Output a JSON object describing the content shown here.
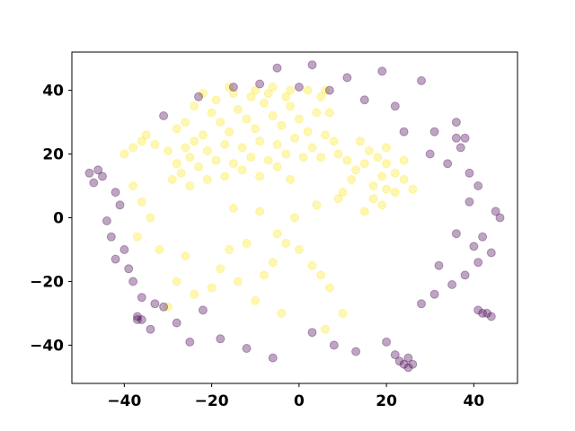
{
  "chart_data": {
    "type": "scatter",
    "title": "",
    "xlabel": "",
    "ylabel": "",
    "xlim": [
      -52,
      50
    ],
    "ylim": [
      -52,
      52
    ],
    "x_ticks": [
      -40,
      -20,
      0,
      20,
      40
    ],
    "y_ticks": [
      -40,
      -20,
      0,
      20,
      40
    ],
    "x_tick_labels": [
      "−40",
      "−20",
      "0",
      "20",
      "40"
    ],
    "y_tick_labels": [
      "−40",
      "−20",
      "0",
      "20",
      "40"
    ],
    "grid": false,
    "legend": "none",
    "marker_alpha": 0.35,
    "colors": {
      "class_a": "#440154",
      "class_b": "#fde725"
    },
    "series": [
      {
        "class": "class_b",
        "points": [
          [
            -20,
            33
          ],
          [
            -18,
            30
          ],
          [
            -16,
            27
          ],
          [
            -14,
            34
          ],
          [
            -12,
            31
          ],
          [
            -10,
            28
          ],
          [
            -8,
            36
          ],
          [
            -6,
            32
          ],
          [
            -4,
            29
          ],
          [
            -2,
            35
          ],
          [
            0,
            31
          ],
          [
            2,
            27
          ],
          [
            4,
            33
          ],
          [
            -22,
            26
          ],
          [
            -24,
            24
          ],
          [
            -26,
            22
          ],
          [
            -21,
            21
          ],
          [
            -17,
            23
          ],
          [
            -13,
            22
          ],
          [
            -9,
            24
          ],
          [
            -5,
            23
          ],
          [
            -1,
            25
          ],
          [
            3,
            22
          ],
          [
            6,
            26
          ],
          [
            8,
            24
          ],
          [
            -19,
            37
          ],
          [
            -15,
            39
          ],
          [
            -11,
            38
          ],
          [
            -7,
            39
          ],
          [
            -3,
            38
          ],
          [
            5,
            38
          ],
          [
            7,
            33
          ],
          [
            -28,
            17
          ],
          [
            -25,
            19
          ],
          [
            -30,
            21
          ],
          [
            -33,
            23
          ],
          [
            -35,
            26
          ],
          [
            -27,
            14
          ],
          [
            -23,
            16
          ],
          [
            -19,
            18
          ],
          [
            -15,
            17
          ],
          [
            -11,
            19
          ],
          [
            -7,
            18
          ],
          [
            -3,
            20
          ],
          [
            1,
            19
          ],
          [
            5,
            19
          ],
          [
            9,
            20
          ],
          [
            -29,
            12
          ],
          [
            -25,
            10
          ],
          [
            -21,
            12
          ],
          [
            -17,
            13
          ],
          [
            -13,
            15
          ],
          [
            -9,
            13
          ],
          [
            -5,
            16
          ],
          [
            -2,
            12
          ],
          [
            -38,
            22
          ],
          [
            -36,
            24
          ],
          [
            -40,
            20
          ],
          [
            -26,
            30
          ],
          [
            -28,
            28
          ],
          [
            -24,
            35
          ],
          [
            -22,
            39
          ],
          [
            -16,
            41
          ],
          [
            -10,
            40
          ],
          [
            -6,
            41
          ],
          [
            -2,
            40
          ],
          [
            2,
            40
          ],
          [
            6,
            40
          ],
          [
            14,
            24
          ],
          [
            16,
            21
          ],
          [
            18,
            19
          ],
          [
            20,
            17
          ],
          [
            22,
            14
          ],
          [
            15,
            17
          ],
          [
            19,
            13
          ],
          [
            17,
            10
          ],
          [
            20,
            9
          ],
          [
            22,
            8
          ],
          [
            13,
            15
          ],
          [
            11,
            18
          ],
          [
            24,
            12
          ],
          [
            26,
            9
          ],
          [
            17,
            6
          ],
          [
            19,
            4
          ],
          [
            -20,
            -22
          ],
          [
            -18,
            -16
          ],
          [
            -14,
            -20
          ],
          [
            -24,
            -24
          ],
          [
            -10,
            -26
          ],
          [
            -8,
            -18
          ],
          [
            -5,
            -5
          ],
          [
            -3,
            -8
          ],
          [
            5,
            -18
          ],
          [
            7,
            -22
          ],
          [
            -28,
            -20
          ],
          [
            -26,
            -12
          ],
          [
            -16,
            -10
          ],
          [
            -30,
            -28
          ],
          [
            0,
            -10
          ],
          [
            3,
            -15
          ],
          [
            -12,
            -8
          ],
          [
            -6,
            -14
          ],
          [
            10,
            -30
          ],
          [
            6,
            -35
          ],
          [
            -4,
            -30
          ],
          [
            -34,
            0
          ],
          [
            -37,
            -6
          ],
          [
            -32,
            -10
          ],
          [
            -15,
            3
          ],
          [
            -9,
            2
          ],
          [
            -1,
            0
          ],
          [
            4,
            4
          ],
          [
            9,
            6
          ],
          [
            12,
            12
          ],
          [
            15,
            2
          ],
          [
            10,
            8
          ],
          [
            -36,
            5
          ],
          [
            -38,
            10
          ],
          [
            20,
            22
          ],
          [
            24,
            18
          ]
        ]
      },
      {
        "class": "class_a",
        "points": [
          [
            -5,
            47
          ],
          [
            3,
            48
          ],
          [
            19,
            46
          ],
          [
            28,
            43
          ],
          [
            11,
            44
          ],
          [
            -15,
            41
          ],
          [
            -9,
            42
          ],
          [
            0,
            41
          ],
          [
            7,
            40
          ],
          [
            15,
            37
          ],
          [
            22,
            35
          ],
          [
            -23,
            38
          ],
          [
            -31,
            32
          ],
          [
            36,
            30
          ],
          [
            38,
            25
          ],
          [
            36,
            25
          ],
          [
            24,
            27
          ],
          [
            31,
            27
          ],
          [
            37,
            22
          ],
          [
            -48,
            14
          ],
          [
            -47,
            11
          ],
          [
            -45,
            13
          ],
          [
            -46,
            15
          ],
          [
            -42,
            8
          ],
          [
            -41,
            4
          ],
          [
            -44,
            -1
          ],
          [
            -43,
            -6
          ],
          [
            -40,
            -10
          ],
          [
            -42,
            -13
          ],
          [
            -39,
            -16
          ],
          [
            -38,
            -20
          ],
          [
            -36,
            -25
          ],
          [
            -33,
            -27
          ],
          [
            -37,
            -31
          ],
          [
            -36,
            -32
          ],
          [
            -37,
            -32
          ],
          [
            -34,
            -35
          ],
          [
            42,
            -30
          ],
          [
            43,
            -30
          ],
          [
            41,
            -29
          ],
          [
            44,
            -31
          ],
          [
            23,
            -45
          ],
          [
            24,
            -46
          ],
          [
            25,
            -47
          ],
          [
            26,
            -46
          ],
          [
            22,
            -43
          ],
          [
            25,
            -44
          ],
          [
            20,
            -39
          ],
          [
            13,
            -42
          ],
          [
            8,
            -40
          ],
          [
            3,
            -36
          ],
          [
            -6,
            -44
          ],
          [
            -12,
            -41
          ],
          [
            -18,
            -38
          ],
          [
            -25,
            -39
          ],
          [
            -22,
            -29
          ],
          [
            -28,
            -33
          ],
          [
            -31,
            -28
          ],
          [
            45,
            2
          ],
          [
            46,
            0
          ],
          [
            42,
            -6
          ],
          [
            40,
            -9
          ],
          [
            41,
            -14
          ],
          [
            44,
            -11
          ],
          [
            38,
            -18
          ],
          [
            35,
            -21
          ],
          [
            31,
            -24
          ],
          [
            28,
            -27
          ],
          [
            32,
            -15
          ],
          [
            36,
            -5
          ],
          [
            39,
            5
          ],
          [
            41,
            10
          ],
          [
            39,
            14
          ],
          [
            34,
            17
          ],
          [
            30,
            20
          ]
        ]
      }
    ]
  }
}
